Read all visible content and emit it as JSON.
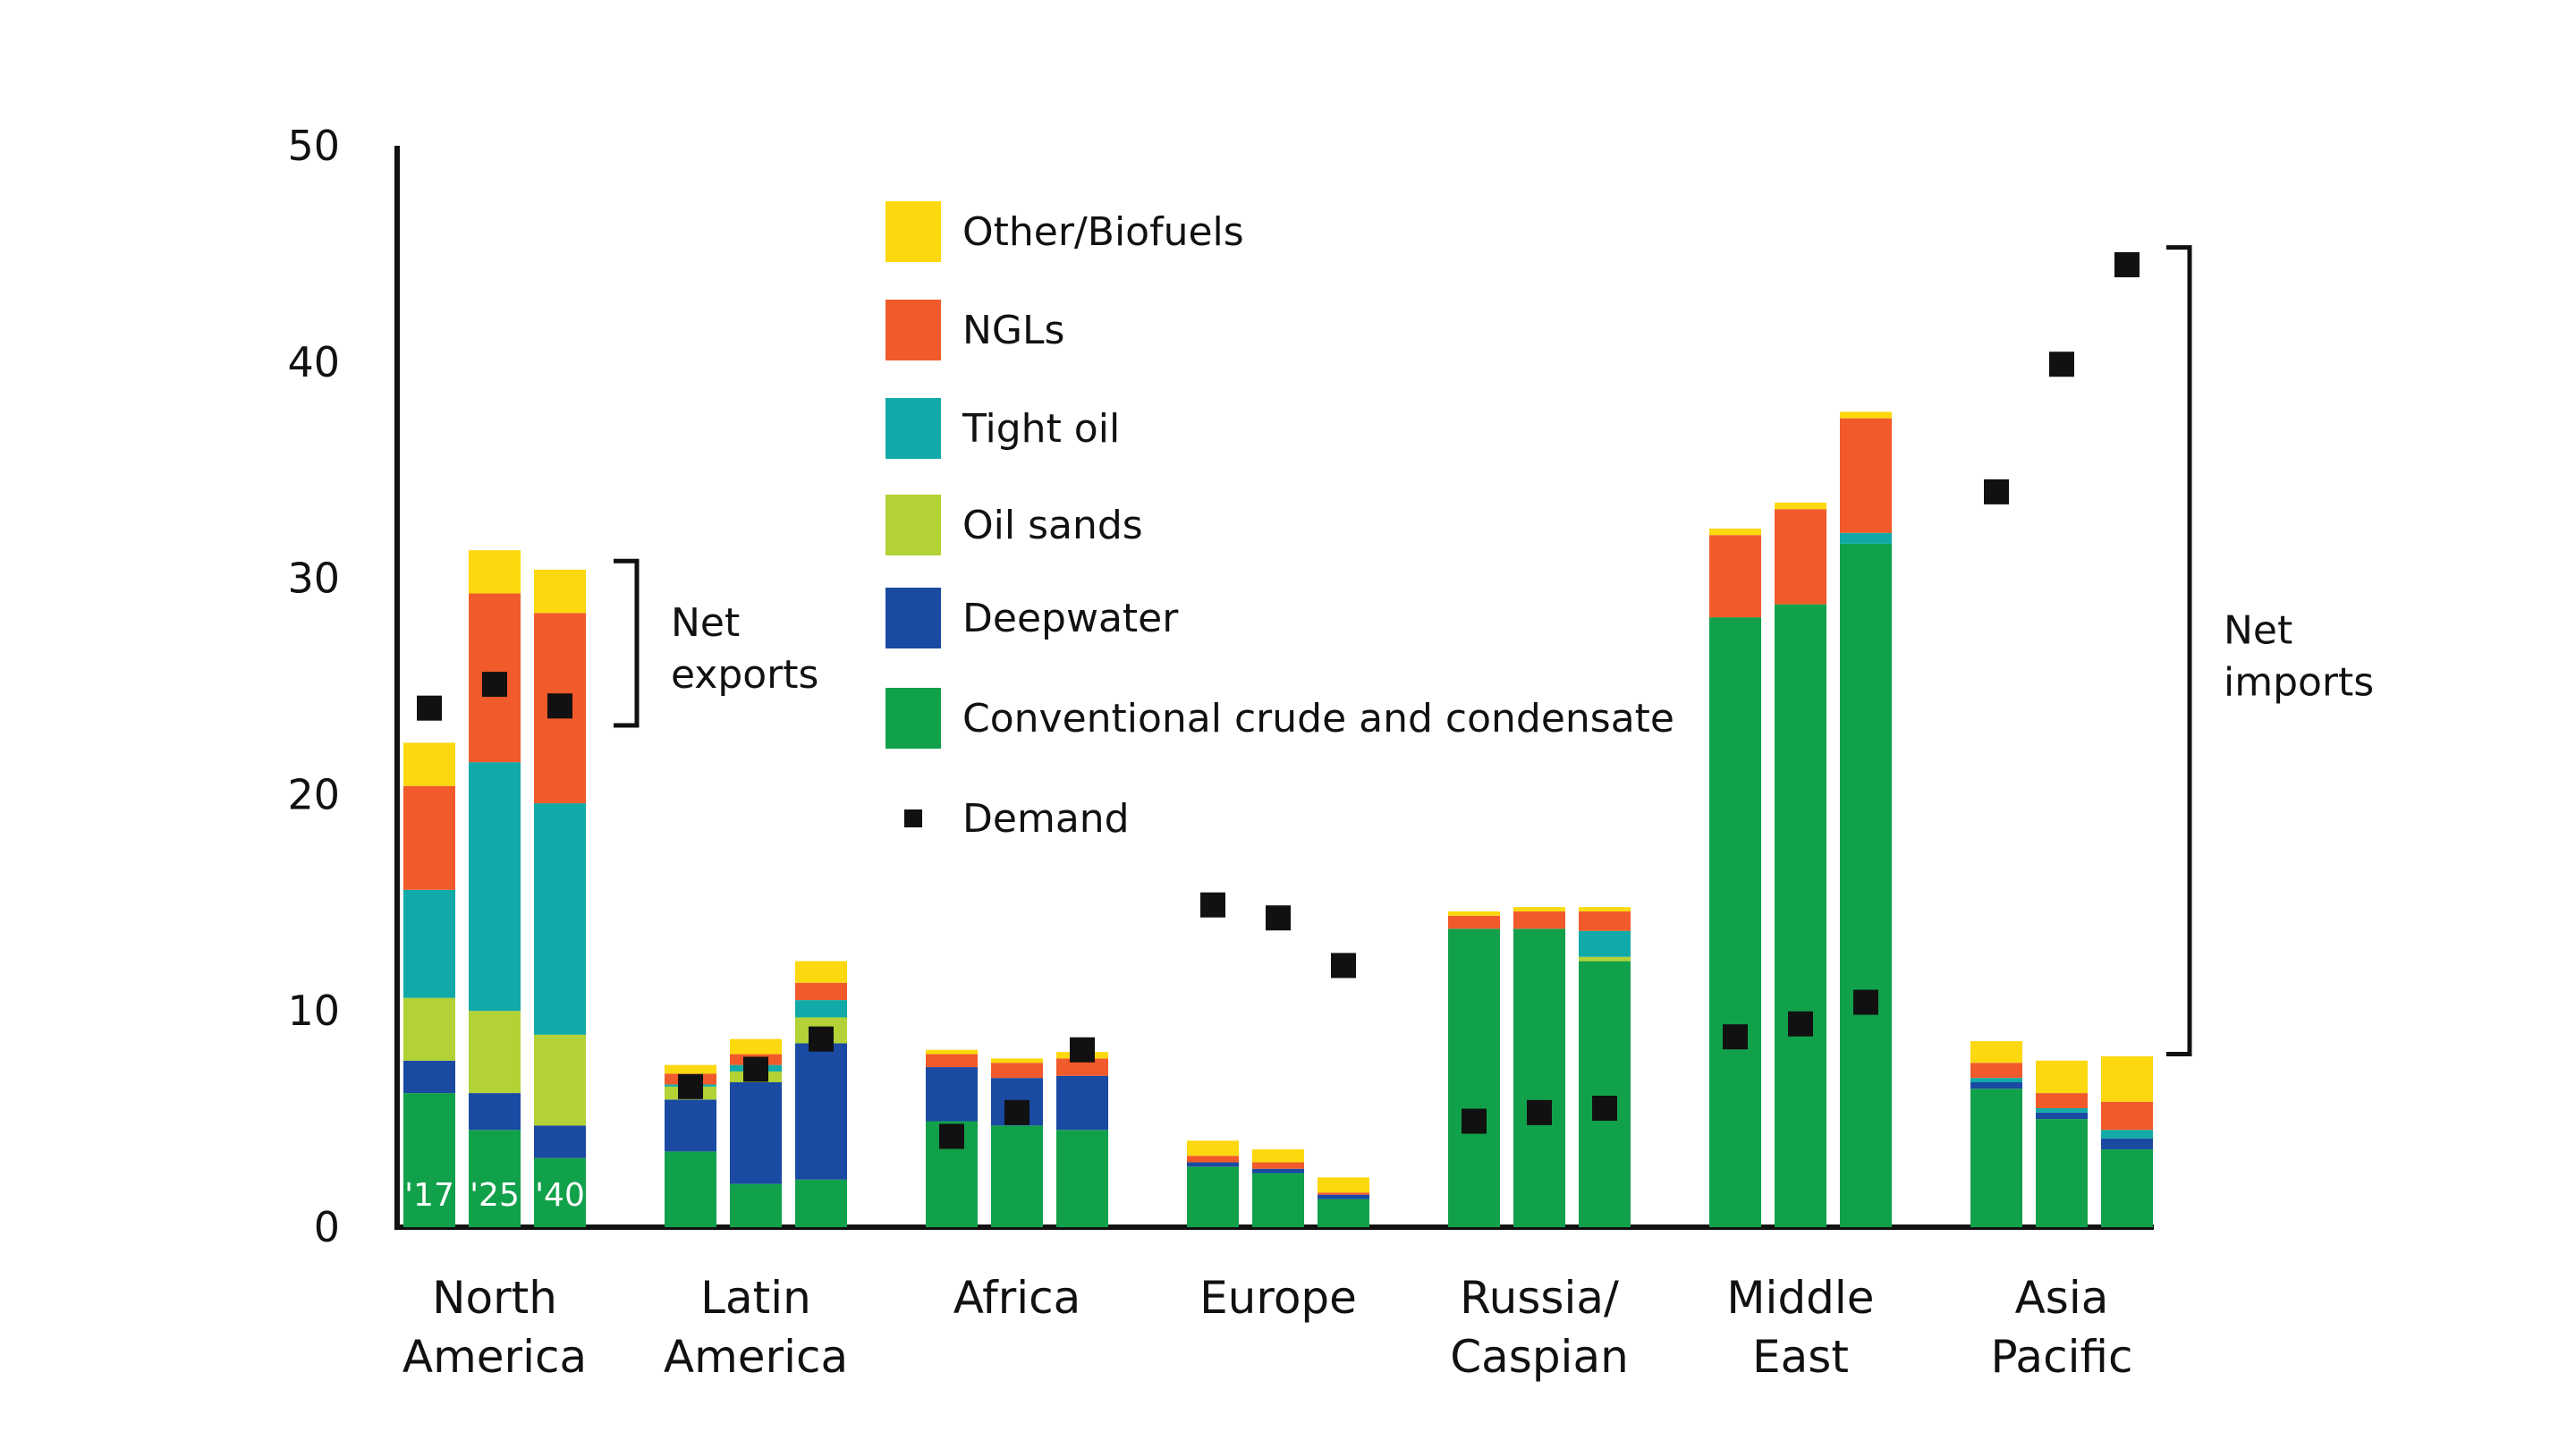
{
  "chart_data": {
    "type": "bar",
    "stacked": true,
    "ylim": [
      0,
      50
    ],
    "yticks": [
      0,
      10,
      20,
      30,
      40,
      50
    ],
    "categories": [
      {
        "lines": [
          "North",
          "America"
        ]
      },
      {
        "lines": [
          "Latin",
          "America"
        ]
      },
      {
        "lines": [
          "Africa"
        ]
      },
      {
        "lines": [
          "Europe"
        ]
      },
      {
        "lines": [
          "Russia/",
          "Caspian"
        ]
      },
      {
        "lines": [
          "Middle",
          "East"
        ]
      },
      {
        "lines": [
          "Asia",
          "Pacific"
        ]
      }
    ],
    "years": [
      "'17",
      "'25",
      "'40"
    ],
    "series": [
      {
        "name": "Conventional crude and condensate",
        "color": "#12a14b",
        "values": [
          [
            6.2,
            4.5,
            3.2
          ],
          [
            3.5,
            2.0,
            2.2
          ],
          [
            4.9,
            4.7,
            4.5
          ],
          [
            2.8,
            2.5,
            1.3
          ],
          [
            13.8,
            13.8,
            12.3
          ],
          [
            28.2,
            28.8,
            31.6
          ],
          [
            6.4,
            5.0,
            3.6
          ]
        ]
      },
      {
        "name": "Deepwater",
        "color": "#1a4aa2",
        "values": [
          [
            1.5,
            1.7,
            1.5
          ],
          [
            2.4,
            4.7,
            6.3
          ],
          [
            2.5,
            2.2,
            2.5
          ],
          [
            0.2,
            0.2,
            0.2
          ],
          [
            0,
            0,
            0
          ],
          [
            0,
            0,
            0
          ],
          [
            0.3,
            0.3,
            0.5
          ]
        ]
      },
      {
        "name": "Oil sands",
        "color": "#b2d235",
        "values": [
          [
            2.9,
            3.8,
            4.2
          ],
          [
            0.6,
            0.5,
            1.2
          ],
          [
            0,
            0,
            0
          ],
          [
            0,
            0,
            0
          ],
          [
            0,
            0,
            0.2
          ],
          [
            0,
            0,
            0
          ],
          [
            0,
            0,
            0
          ]
        ]
      },
      {
        "name": "Tight oil",
        "color": "#12aaa8",
        "values": [
          [
            5.0,
            11.5,
            10.7
          ],
          [
            0.1,
            0.3,
            0.8
          ],
          [
            0,
            0,
            0
          ],
          [
            0,
            0,
            0
          ],
          [
            0,
            0,
            1.2
          ],
          [
            0,
            0,
            0.5
          ],
          [
            0.2,
            0.2,
            0.4
          ]
        ]
      },
      {
        "name": "NGLs",
        "color": "#f15a2a",
        "values": [
          [
            4.8,
            7.8,
            8.8
          ],
          [
            0.5,
            0.5,
            0.8
          ],
          [
            0.6,
            0.7,
            0.8
          ],
          [
            0.3,
            0.3,
            0.1
          ],
          [
            0.6,
            0.8,
            0.9
          ],
          [
            3.8,
            4.4,
            5.3
          ],
          [
            0.7,
            0.7,
            1.3
          ]
        ]
      },
      {
        "name": "Other/Biofuels",
        "color": "#fcd80e",
        "values": [
          [
            2.0,
            2.0,
            2.0
          ],
          [
            0.4,
            0.7,
            1.0
          ],
          [
            0.2,
            0.2,
            0.3
          ],
          [
            0.7,
            0.6,
            0.7
          ],
          [
            0.2,
            0.2,
            0.2
          ],
          [
            0.3,
            0.3,
            0.3
          ],
          [
            1.0,
            1.5,
            2.1
          ]
        ]
      }
    ],
    "demand": {
      "name": "Demand",
      "color": "#111111",
      "values": [
        [
          24.0,
          25.1,
          24.1
        ],
        [
          6.5,
          7.3,
          8.7
        ],
        [
          4.2,
          5.3,
          8.2
        ],
        [
          14.9,
          14.3,
          12.1
        ],
        [
          4.9,
          5.3,
          5.5
        ],
        [
          8.8,
          9.4,
          10.4
        ],
        [
          34.0,
          39.9,
          44.5
        ]
      ]
    },
    "legend": {
      "placement": "top-center",
      "order": [
        "Other/Biofuels",
        "NGLs",
        "Tight oil",
        "Oil sands",
        "Deepwater",
        "Conventional crude and condensate",
        "Demand"
      ]
    },
    "annotations": [
      {
        "lines": [
          "Net",
          "exports"
        ],
        "category": 0,
        "from": 23.2,
        "to": 30.8
      },
      {
        "lines": [
          "Net",
          "imports"
        ],
        "category": 6,
        "from": 8.0,
        "to": 45.3
      }
    ]
  }
}
